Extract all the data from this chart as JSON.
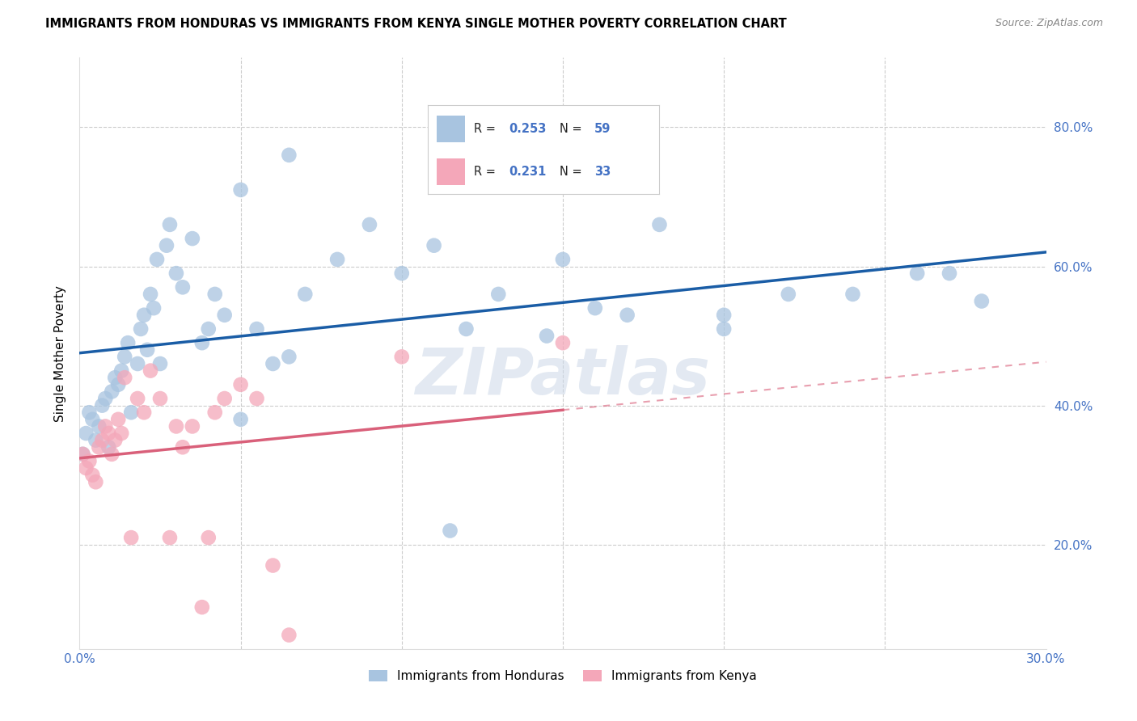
{
  "title": "IMMIGRANTS FROM HONDURAS VS IMMIGRANTS FROM KENYA SINGLE MOTHER POVERTY CORRELATION CHART",
  "source": "Source: ZipAtlas.com",
  "ylabel": "Single Mother Poverty",
  "watermark": "ZIPatlas",
  "color_honduras": "#a8c4e0",
  "color_kenya": "#f4a7b9",
  "color_line_honduras": "#1a5da6",
  "color_line_kenya": "#d9607a",
  "xlim": [
    0.0,
    0.3
  ],
  "ylim": [
    0.05,
    0.9
  ],
  "honduras_x": [
    0.001,
    0.002,
    0.003,
    0.004,
    0.005,
    0.006,
    0.007,
    0.008,
    0.009,
    0.01,
    0.011,
    0.012,
    0.013,
    0.014,
    0.015,
    0.016,
    0.018,
    0.019,
    0.02,
    0.021,
    0.022,
    0.023,
    0.024,
    0.025,
    0.027,
    0.028,
    0.03,
    0.032,
    0.035,
    0.038,
    0.04,
    0.042,
    0.045,
    0.05,
    0.055,
    0.06,
    0.065,
    0.07,
    0.08,
    0.09,
    0.1,
    0.11,
    0.12,
    0.13,
    0.15,
    0.16,
    0.17,
    0.18,
    0.2,
    0.22,
    0.24,
    0.26,
    0.27,
    0.28,
    0.05,
    0.065,
    0.115,
    0.145,
    0.2
  ],
  "honduras_y": [
    0.33,
    0.36,
    0.39,
    0.38,
    0.35,
    0.37,
    0.4,
    0.41,
    0.34,
    0.42,
    0.44,
    0.43,
    0.45,
    0.47,
    0.49,
    0.39,
    0.46,
    0.51,
    0.53,
    0.48,
    0.56,
    0.54,
    0.61,
    0.46,
    0.63,
    0.66,
    0.59,
    0.57,
    0.64,
    0.49,
    0.51,
    0.56,
    0.53,
    0.71,
    0.51,
    0.46,
    0.76,
    0.56,
    0.61,
    0.66,
    0.59,
    0.63,
    0.51,
    0.56,
    0.61,
    0.54,
    0.53,
    0.66,
    0.51,
    0.56,
    0.56,
    0.59,
    0.59,
    0.55,
    0.38,
    0.47,
    0.22,
    0.5,
    0.53
  ],
  "kenya_x": [
    0.001,
    0.002,
    0.003,
    0.004,
    0.005,
    0.006,
    0.007,
    0.008,
    0.009,
    0.01,
    0.011,
    0.012,
    0.013,
    0.014,
    0.016,
    0.018,
    0.02,
    0.022,
    0.025,
    0.028,
    0.03,
    0.032,
    0.035,
    0.038,
    0.04,
    0.042,
    0.045,
    0.05,
    0.055,
    0.06,
    0.065,
    0.1,
    0.15
  ],
  "kenya_y": [
    0.33,
    0.31,
    0.32,
    0.3,
    0.29,
    0.34,
    0.35,
    0.37,
    0.36,
    0.33,
    0.35,
    0.38,
    0.36,
    0.44,
    0.21,
    0.41,
    0.39,
    0.45,
    0.41,
    0.21,
    0.37,
    0.34,
    0.37,
    0.11,
    0.21,
    0.39,
    0.41,
    0.43,
    0.41,
    0.17,
    0.07,
    0.47,
    0.49
  ],
  "legend_blue_text": "R = 0.253   N = 59",
  "legend_pink_text": "R = 0.231   N = 33",
  "r_honduras": "0.253",
  "n_honduras": "59",
  "r_kenya": "0.231",
  "n_kenya": "33"
}
